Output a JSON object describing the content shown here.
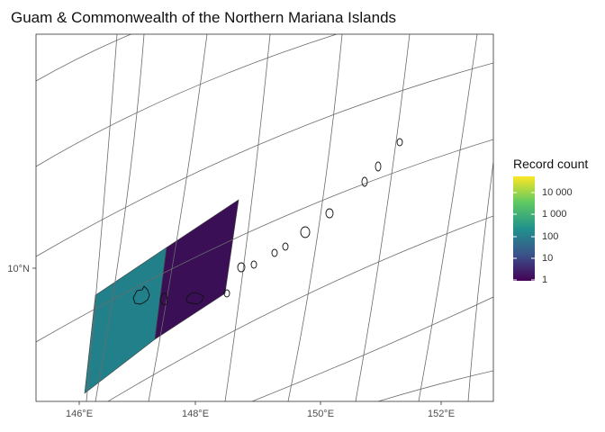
{
  "title": "Guam & Commonwealth of the Northern Mariana Islands",
  "axes": {
    "x_ticks": [
      "146°E",
      "148°E",
      "150°E",
      "152°E"
    ],
    "y_ticks": [
      "10°N"
    ]
  },
  "legend": {
    "title": "Record count",
    "scale": "log",
    "labels": [
      "10 000",
      "1 000",
      "100",
      "10",
      "1"
    ],
    "colors": [
      "#fde725",
      "#5ec962",
      "#21918c",
      "#3b528b",
      "#440154"
    ]
  },
  "cells": [
    {
      "name": "cell-southwest",
      "color": "#22808a"
    },
    {
      "name": "cell-east",
      "color": "#3b0f56"
    }
  ]
}
